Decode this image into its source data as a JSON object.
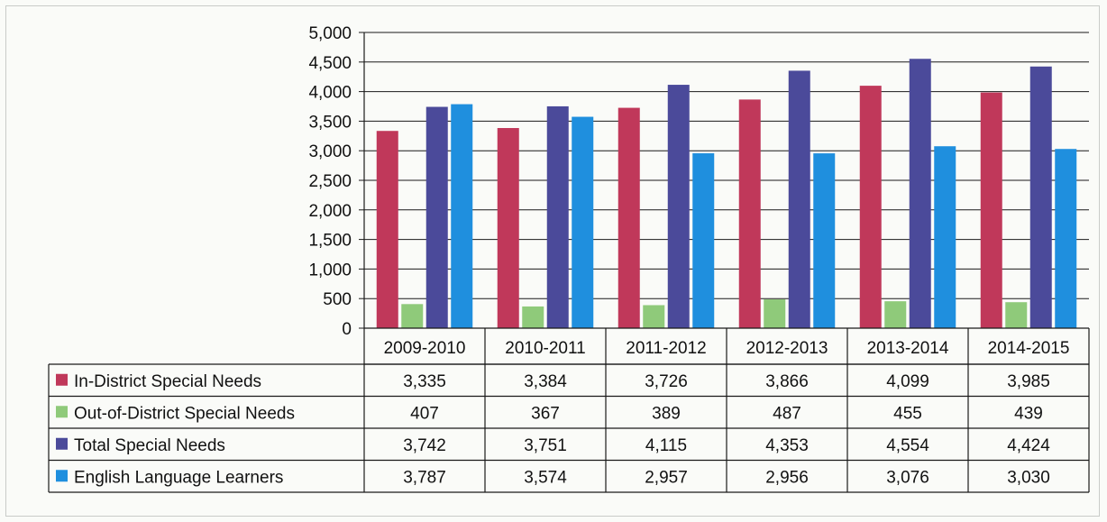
{
  "chart_data": {
    "type": "bar",
    "categories": [
      "2009-2010",
      "2010-2011",
      "2011-2012",
      "2012-2013",
      "2013-2014",
      "2014-2015"
    ],
    "ylim": [
      0,
      5000
    ],
    "yticks": [
      0,
      500,
      1000,
      1500,
      2000,
      2500,
      3000,
      3500,
      4000,
      4500,
      5000
    ],
    "ytick_labels": [
      "0",
      "500",
      "1,000",
      "1,500",
      "2,000",
      "2,500",
      "3,000",
      "3,500",
      "4,000",
      "4,500",
      "5,000"
    ],
    "grid": true,
    "legend": "data table below chart",
    "series": [
      {
        "name": "In-District Special Needs",
        "color": "#c0385a",
        "values": [
          3335,
          3384,
          3726,
          3866,
          4099,
          3985
        ],
        "labels": [
          "3,335",
          "3,384",
          "3,726",
          "3,866",
          "4,099",
          "3,985"
        ]
      },
      {
        "name": "Out-of-District Special Needs",
        "color": "#8fca7a",
        "values": [
          407,
          367,
          389,
          487,
          455,
          439
        ],
        "labels": [
          "407",
          "367",
          "389",
          "487",
          "455",
          "439"
        ]
      },
      {
        "name": "Total Special Needs",
        "color": "#4b4a9a",
        "values": [
          3742,
          3751,
          4115,
          4353,
          4554,
          4424
        ],
        "labels": [
          "3,742",
          "3,751",
          "4,115",
          "4,353",
          "4,554",
          "4,424"
        ]
      },
      {
        "name": "English Language Learners",
        "color": "#1f8fde",
        "values": [
          3787,
          3574,
          2957,
          2956,
          3076,
          3030
        ],
        "labels": [
          "3,787",
          "3,574",
          "2,957",
          "2,956",
          "3,076",
          "3,030"
        ]
      }
    ]
  }
}
